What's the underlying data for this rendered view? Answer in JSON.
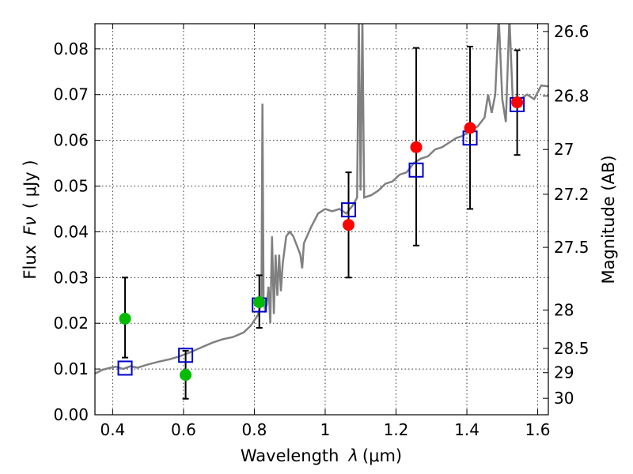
{
  "chart_data": {
    "type": "scatter",
    "xlabel": "Wavelength",
    "xlabel_symbol": "λ",
    "xlabel_unit": "(μm)",
    "ylabel": "Flux",
    "ylabel_symbol": "Fν",
    "ylabel_unit": "( μJy )",
    "y2label": "Magnitude (AB)",
    "xlim": [
      0.35,
      1.63
    ],
    "ylim": [
      0.0,
      0.0855
    ],
    "grid": true,
    "x_ticks": [
      0.4,
      0.6,
      0.8,
      1.0,
      1.2,
      1.4,
      1.6
    ],
    "x_tick_labels": [
      "0.4",
      "0.6",
      "0.8",
      "1",
      "1.2",
      "1.4",
      "1.6"
    ],
    "y_ticks": [
      0.0,
      0.01,
      0.02,
      0.03,
      0.04,
      0.05,
      0.06,
      0.07,
      0.08
    ],
    "y_tick_labels": [
      "0.00",
      "0.01",
      "0.02",
      "0.03",
      "0.04",
      "0.05",
      "0.06",
      "0.07",
      "0.08"
    ],
    "magnitude_ticks": [
      {
        "label": "26.6",
        "flux": 0.0838
      },
      {
        "label": "26.8",
        "flux": 0.0697
      },
      {
        "label": "27",
        "flux": 0.058
      },
      {
        "label": "27.2",
        "flux": 0.0482
      },
      {
        "label": "27.5",
        "flux": 0.0366
      },
      {
        "label": "28",
        "flux": 0.0229
      },
      {
        "label": "28.5",
        "flux": 0.0145
      },
      {
        "label": "29",
        "flux": 0.0092
      },
      {
        "label": "30",
        "flux": 0.0036
      }
    ],
    "observed_green": {
      "color": "#00bb00",
      "points": [
        {
          "x": 0.435,
          "y": 0.021
        },
        {
          "x": 0.606,
          "y": 0.0087
        },
        {
          "x": 0.814,
          "y": 0.0246
        }
      ]
    },
    "observed_red": {
      "color": "#ff0000",
      "points": [
        {
          "x": 1.066,
          "y": 0.0415
        },
        {
          "x": 1.257,
          "y": 0.0585
        },
        {
          "x": 1.409,
          "y": 0.0627
        },
        {
          "x": 1.542,
          "y": 0.0683
        }
      ]
    },
    "model_photometry": {
      "color": "#0000cc",
      "points": [
        {
          "x": 0.435,
          "y": 0.0102
        },
        {
          "x": 0.606,
          "y": 0.013
        },
        {
          "x": 0.814,
          "y": 0.024
        },
        {
          "x": 1.066,
          "y": 0.0448
        },
        {
          "x": 1.257,
          "y": 0.0535
        },
        {
          "x": 1.409,
          "y": 0.0605
        },
        {
          "x": 1.542,
          "y": 0.0678
        }
      ]
    },
    "error_bars": [
      {
        "x": 0.435,
        "lo": 0.0125,
        "hi": 0.03
      },
      {
        "x": 0.606,
        "lo": 0.0035,
        "hi": 0.014
      },
      {
        "x": 0.814,
        "lo": 0.019,
        "hi": 0.0305
      },
      {
        "x": 1.066,
        "lo": 0.03,
        "hi": 0.053
      },
      {
        "x": 1.257,
        "lo": 0.037,
        "hi": 0.0802
      },
      {
        "x": 1.409,
        "lo": 0.045,
        "hi": 0.0805
      },
      {
        "x": 1.542,
        "lo": 0.0568,
        "hi": 0.0797
      }
    ],
    "model_spectrum": {
      "color": "#808080",
      "points": [
        [
          0.35,
          0.009
        ],
        [
          0.37,
          0.0098
        ],
        [
          0.39,
          0.0102
        ],
        [
          0.41,
          0.0105
        ],
        [
          0.43,
          0.01
        ],
        [
          0.45,
          0.0106
        ],
        [
          0.47,
          0.0103
        ],
        [
          0.5,
          0.011
        ],
        [
          0.53,
          0.0116
        ],
        [
          0.56,
          0.0121
        ],
        [
          0.59,
          0.0128
        ],
        [
          0.62,
          0.0137
        ],
        [
          0.65,
          0.0147
        ],
        [
          0.68,
          0.0157
        ],
        [
          0.71,
          0.0165
        ],
        [
          0.74,
          0.017
        ],
        [
          0.77,
          0.018
        ],
        [
          0.79,
          0.0195
        ],
        [
          0.81,
          0.0218
        ],
        [
          0.82,
          0.0245
        ],
        [
          0.823,
          0.068
        ],
        [
          0.826,
          0.025
        ],
        [
          0.83,
          0.023
        ],
        [
          0.835,
          0.024
        ],
        [
          0.84,
          0.028
        ],
        [
          0.845,
          0.02
        ],
        [
          0.85,
          0.039
        ],
        [
          0.855,
          0.022
        ],
        [
          0.86,
          0.035
        ],
        [
          0.865,
          0.026
        ],
        [
          0.87,
          0.035
        ],
        [
          0.875,
          0.027
        ],
        [
          0.88,
          0.033
        ],
        [
          0.89,
          0.039
        ],
        [
          0.9,
          0.04
        ],
        [
          0.91,
          0.039
        ],
        [
          0.92,
          0.037
        ],
        [
          0.93,
          0.035
        ],
        [
          0.935,
          0.032
        ],
        [
          0.94,
          0.0375
        ],
        [
          0.96,
          0.041
        ],
        [
          0.98,
          0.044
        ],
        [
          1.0,
          0.045
        ],
        [
          1.02,
          0.0445
        ],
        [
          1.04,
          0.045
        ],
        [
          1.06,
          0.044
        ],
        [
          1.08,
          0.046
        ],
        [
          1.09,
          0.0475
        ],
        [
          1.095,
          0.087
        ],
        [
          1.1,
          0.049
        ],
        [
          1.105,
          0.087
        ],
        [
          1.11,
          0.0475
        ],
        [
          1.13,
          0.048
        ],
        [
          1.15,
          0.049
        ],
        [
          1.17,
          0.0505
        ],
        [
          1.19,
          0.051
        ],
        [
          1.21,
          0.0525
        ],
        [
          1.23,
          0.053
        ],
        [
          1.25,
          0.055
        ],
        [
          1.27,
          0.056
        ],
        [
          1.29,
          0.0565
        ],
        [
          1.31,
          0.058
        ],
        [
          1.33,
          0.0585
        ],
        [
          1.35,
          0.0595
        ],
        [
          1.37,
          0.0605
        ],
        [
          1.39,
          0.061
        ],
        [
          1.41,
          0.0625
        ],
        [
          1.43,
          0.063
        ],
        [
          1.45,
          0.065
        ],
        [
          1.46,
          0.07
        ],
        [
          1.47,
          0.066
        ],
        [
          1.48,
          0.07
        ],
        [
          1.49,
          0.087
        ],
        [
          1.5,
          0.069
        ],
        [
          1.51,
          0.064
        ],
        [
          1.52,
          0.087
        ],
        [
          1.53,
          0.068
        ],
        [
          1.55,
          0.069
        ],
        [
          1.57,
          0.07
        ],
        [
          1.59,
          0.069
        ],
        [
          1.61,
          0.072
        ],
        [
          1.63,
          0.0718
        ]
      ]
    }
  }
}
